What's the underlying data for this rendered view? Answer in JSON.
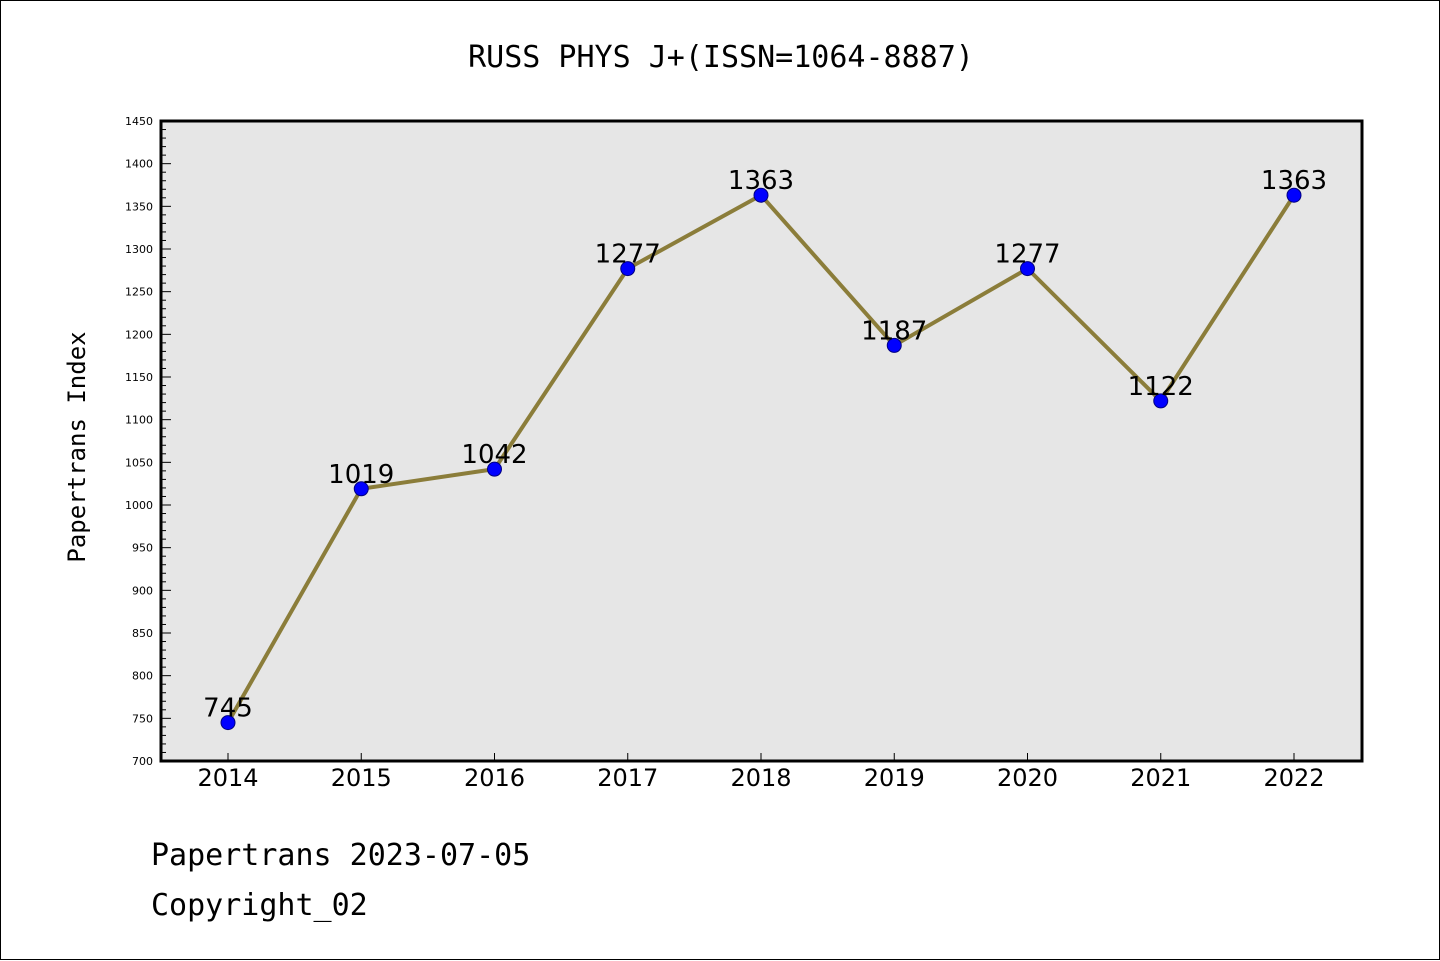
{
  "chart_data": {
    "type": "line",
    "title": "RUSS PHYS J+(ISSN=1064-8887)",
    "ylabel": "Papertrans Index",
    "xlabel": "",
    "categories": [
      "2014",
      "2015",
      "2016",
      "2017",
      "2018",
      "2019",
      "2020",
      "2021",
      "2022"
    ],
    "values": [
      745,
      1019,
      1042,
      1277,
      1363,
      1187,
      1277,
      1122,
      1363
    ],
    "data_labels": [
      "745",
      "1019",
      "1042",
      "1277",
      "1363",
      "1187",
      "1277",
      "1122",
      "1363"
    ],
    "ylim": [
      700,
      1450
    ],
    "yticks": [
      700,
      750,
      800,
      850,
      900,
      950,
      1000,
      1050,
      1100,
      1150,
      1200,
      1250,
      1300,
      1350,
      1400,
      1450
    ],
    "ytick_labels": [
      "700",
      "750",
      "800",
      "850",
      "900",
      "950",
      "1000",
      "1050",
      "1100",
      "1150",
      "1200",
      "1250",
      "1300",
      "1350",
      "1400",
      "1450"
    ],
    "grid": false,
    "colors": {
      "line": "#8b7d3a",
      "marker_fill": "#0000ff",
      "marker_edge": "#000080",
      "plot_background": "#e6e6e6"
    }
  },
  "footer": {
    "line1": "Papertrans 2023-07-05",
    "line2": "Copyright_02"
  }
}
